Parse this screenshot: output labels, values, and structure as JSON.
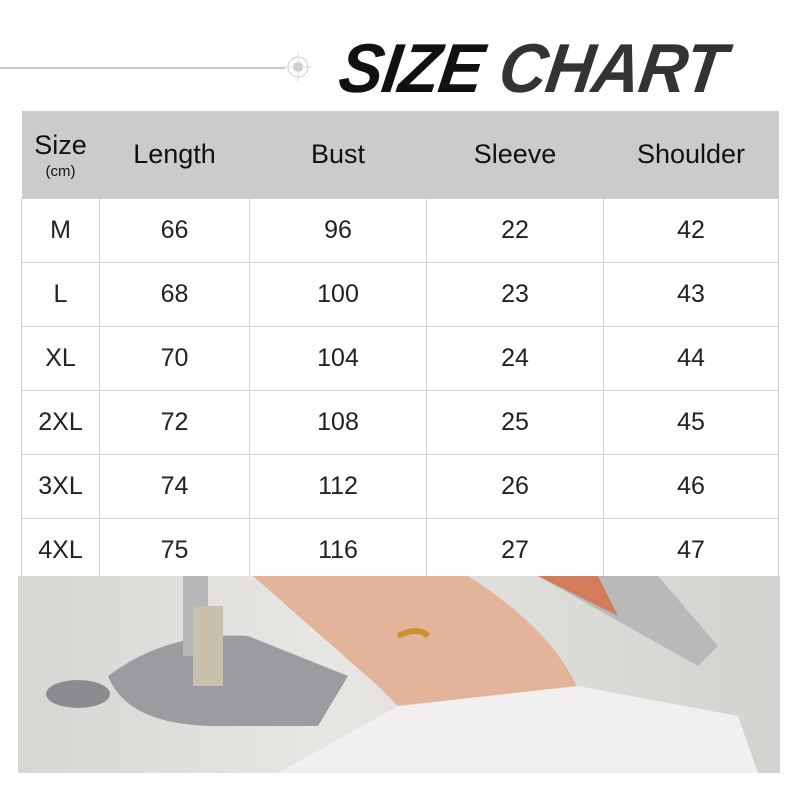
{
  "title": {
    "part1": "SIZE",
    "part2": "CHART"
  },
  "table": {
    "headers": [
      "Size",
      "Length",
      "Bust",
      "Sleeve",
      "Shoulder"
    ],
    "unit": "(cm)",
    "rows": [
      [
        "M",
        "66",
        "96",
        "22",
        "42"
      ],
      [
        "L",
        "68",
        "100",
        "23",
        "43"
      ],
      [
        "XL",
        "70",
        "104",
        "24",
        "44"
      ],
      [
        "2XL",
        "72",
        "108",
        "25",
        "45"
      ],
      [
        "3XL",
        "74",
        "112",
        "26",
        "46"
      ],
      [
        "4XL",
        "75",
        "116",
        "27",
        "47"
      ]
    ]
  },
  "colors": {
    "header_bg": "#cbcbcb",
    "title": "#111111"
  }
}
